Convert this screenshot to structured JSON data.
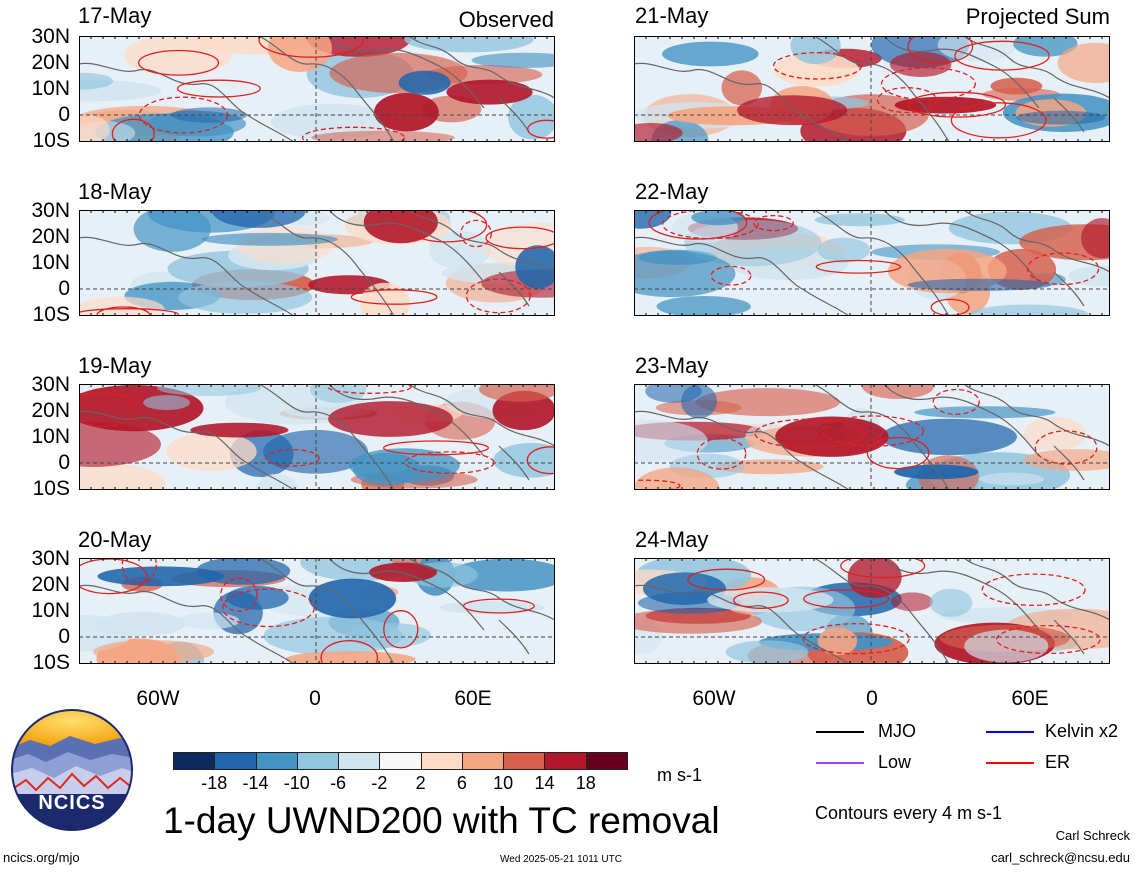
{
  "columns": {
    "left_title": "Observed",
    "right_title": "Projected Sum"
  },
  "panels_left": [
    "17-May",
    "18-May",
    "19-May",
    "20-May"
  ],
  "panels_right": [
    "21-May",
    "22-May",
    "23-May",
    "24-May"
  ],
  "lat_labels": [
    "30N",
    "20N",
    "10N",
    "0",
    "10S"
  ],
  "lon_labels": [
    "60W",
    "0",
    "60E"
  ],
  "colorbar": {
    "labels": [
      "-18",
      "-14",
      "-10",
      "-6",
      "-2",
      "2",
      "6",
      "10",
      "14",
      "18"
    ],
    "colors": [
      "#0d2a5c",
      "#2166ac",
      "#4393c3",
      "#92c5de",
      "#d1e5f0",
      "#f7f7f7",
      "#fddbc7",
      "#f4a582",
      "#d6604d",
      "#b2182b",
      "#67001f"
    ],
    "units": "m s-1"
  },
  "title": "1-day UWND200 with TC removal",
  "legend": {
    "items": [
      {
        "label": "MJO",
        "color": "#000000"
      },
      {
        "label": "Kelvin x2",
        "color": "#0000ff"
      },
      {
        "label": "Low",
        "color": "#a040ff"
      },
      {
        "label": "ER",
        "color": "#ff0000"
      }
    ],
    "contour_note": "Contours every 4 m s-1"
  },
  "logo_text": "NCICS",
  "footer": {
    "url": "ncics.org/mjo",
    "timestamp": "Wed 2025-05-21 1011 UTC",
    "author": "Carl Schreck",
    "email": "carl_schreck@ncsu.edu"
  }
}
